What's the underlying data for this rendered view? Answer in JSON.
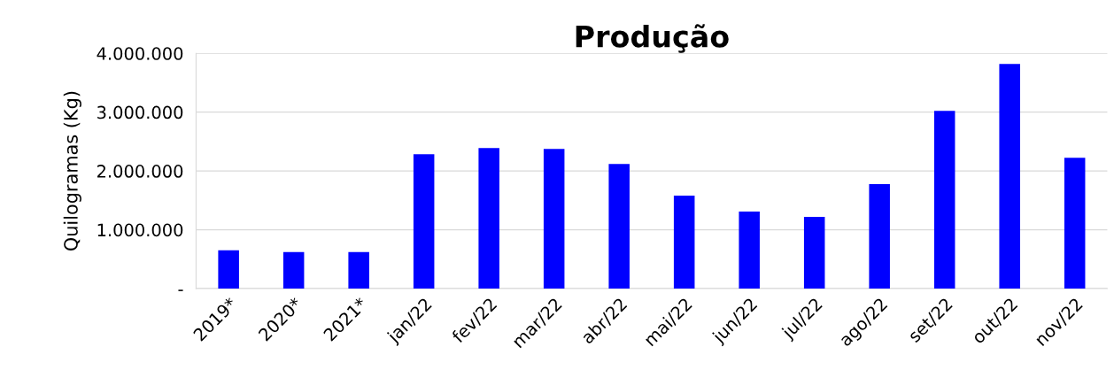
{
  "chart_data": {
    "type": "bar",
    "title": "Produção",
    "ylabel": "Quilogramas (Kg)",
    "categories": [
      "2019*",
      "2020*",
      "2021*",
      "jan/22",
      "fev/22",
      "mar/22",
      "abr/22",
      "mai/22",
      "jun/22",
      "jul/22",
      "ago/22",
      "set/22",
      "out/22",
      "nov/22"
    ],
    "values": [
      650000,
      620000,
      620000,
      2285000,
      2390000,
      2375000,
      2120000,
      1580000,
      1310000,
      1220000,
      1775000,
      3020000,
      3820000,
      2225000
    ],
    "color": "#0000ff",
    "ylim": [
      0,
      4000000
    ],
    "yticks": [
      {
        "value": 0,
        "label": "-"
      },
      {
        "value": 1000000,
        "label": "1.000.000"
      },
      {
        "value": 2000000,
        "label": "2.000.000"
      },
      {
        "value": 3000000,
        "label": "3.000.000"
      },
      {
        "value": 4000000,
        "label": "4.000.000"
      }
    ],
    "grid": "y",
    "legend": false
  }
}
